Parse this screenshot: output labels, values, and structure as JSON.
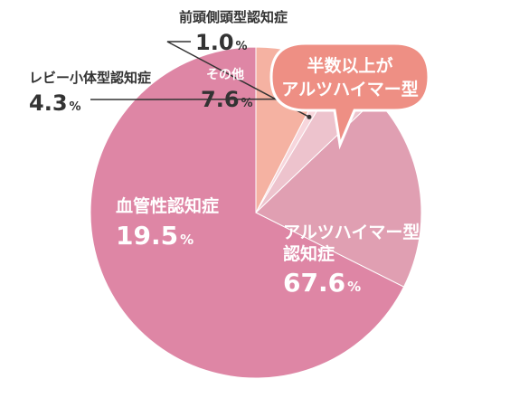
{
  "chart_data": {
    "type": "pie",
    "slices": [
      {
        "label_lines": [
          "アルツハイマー型",
          "認知症"
        ],
        "value": 67.6,
        "value_text": "67.6",
        "unit": "%",
        "color": "#de86a5",
        "label_position": "inside"
      },
      {
        "label_lines": [
          "血管性認知症"
        ],
        "value": 19.5,
        "value_text": "19.5",
        "unit": "%",
        "color": "#e09fb2",
        "label_position": "inside"
      },
      {
        "label_lines": [
          "レビー小体型認知症"
        ],
        "value": 4.3,
        "value_text": "4.3",
        "unit": "%",
        "color": "#edc3cd",
        "label_position": "outside"
      },
      {
        "label_lines": [
          "前頭側頭型認知症"
        ],
        "value": 1.0,
        "value_text": "1.0",
        "unit": "%",
        "color": "#f7d6dc",
        "label_position": "outside"
      },
      {
        "label_lines": [
          "その他"
        ],
        "value": 7.6,
        "value_text": "7.6",
        "unit": "%",
        "color": "#f5b2a2",
        "label_position": "inside"
      }
    ],
    "start_angle": "12 o'clock",
    "direction": "counterclockwise"
  },
  "callout": {
    "lines": [
      "半数以上が",
      "アルツハイマー型"
    ],
    "color": "#ee8f84"
  }
}
